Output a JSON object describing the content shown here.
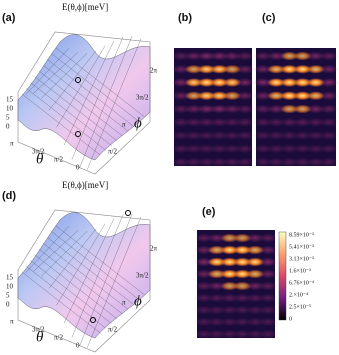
{
  "panels": [
    {
      "label": "(a)",
      "title": "E(θ,ϕ)[meV]",
      "z_ticks": [
        "15",
        "10",
        "5",
        "0"
      ],
      "theta_label": "θ",
      "theta_ticks": [
        "π",
        "3π/2",
        "π/2",
        "0"
      ],
      "phi_label": "ϕ",
      "phi_ticks": [
        "π/2",
        "π",
        "3π/2",
        "2π"
      ]
    },
    {
      "label": "(b)"
    },
    {
      "label": "(c)"
    },
    {
      "label": "(d)",
      "title": "E(θ,ϕ)[meV]",
      "z_ticks": [
        "15",
        "10",
        "5",
        "0"
      ],
      "theta_label": "θ",
      "theta_ticks": [
        "π",
        "3π/2",
        "π/2",
        "0"
      ],
      "phi_label": "ϕ",
      "phi_ticks": [
        "π/2",
        "π",
        "3π/2",
        "2π"
      ]
    },
    {
      "label": "(e)",
      "colorbar_ticks": [
        "8.59×10⁻³",
        "5.41×10⁻³",
        "3.13×10⁻³",
        "1.6×10⁻³",
        "6.76×10⁻⁴",
        "2.×10⁻⁴",
        "2.5×10⁻⁵",
        "0"
      ]
    }
  ]
}
